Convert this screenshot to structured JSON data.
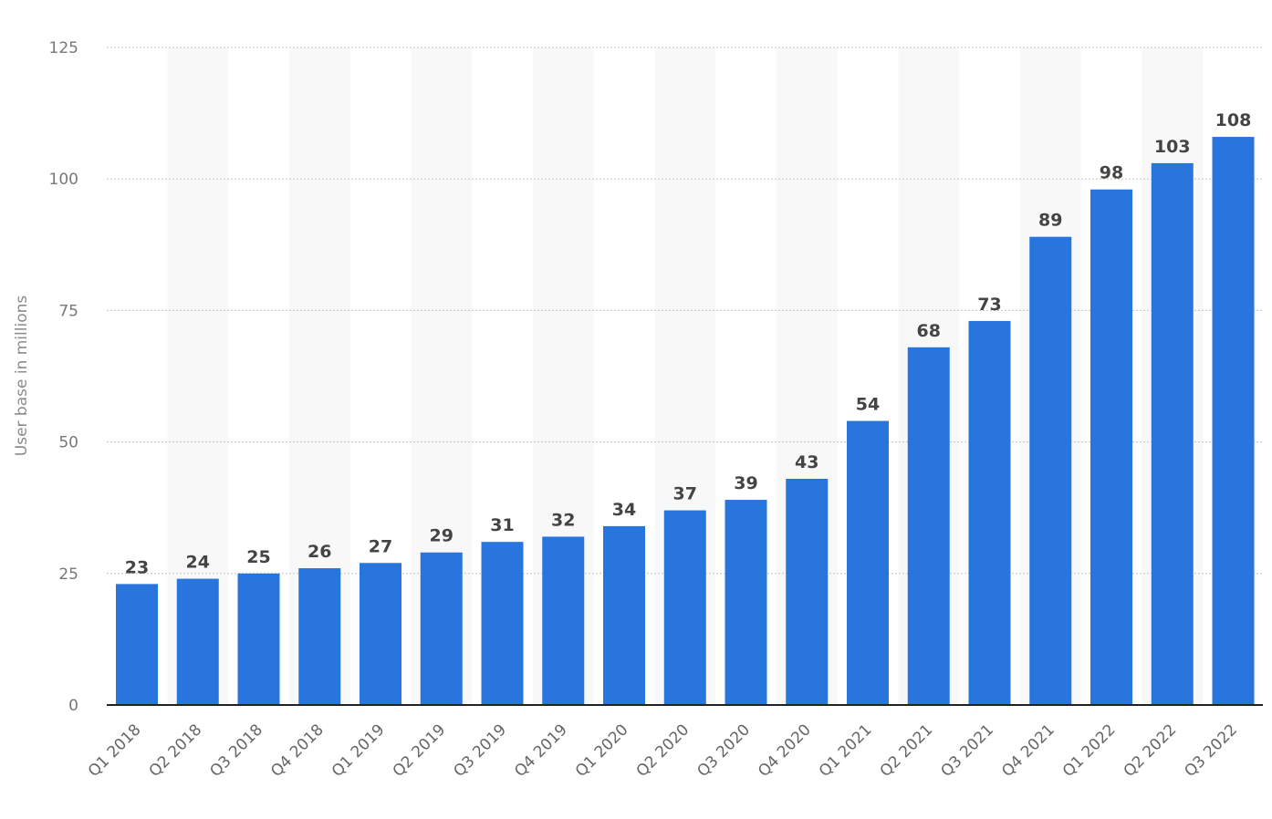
{
  "chart_data": {
    "type": "bar",
    "title": "",
    "xlabel": "",
    "ylabel": "User base in millions",
    "ylim": [
      0,
      125
    ],
    "yticks": [
      0,
      25,
      50,
      75,
      100,
      125
    ],
    "grid": true,
    "legend": "none",
    "categories": [
      "Q1 2018",
      "Q2 2018",
      "Q3 2018",
      "Q4 2018",
      "Q1 2019",
      "Q2 2019",
      "Q3 2019",
      "Q4 2019",
      "Q1 2020",
      "Q2 2020",
      "Q3 2020",
      "Q4 2020",
      "Q1 2021",
      "Q2 2021",
      "Q3 2021",
      "Q4 2021",
      "Q1 2022",
      "Q2 2022",
      "Q3 2022"
    ],
    "values": [
      23,
      24,
      25,
      26,
      27,
      29,
      31,
      32,
      34,
      37,
      39,
      43,
      54,
      68,
      73,
      89,
      98,
      103,
      108
    ],
    "colors": {
      "bar": "#2876dd",
      "band": "#f8f8f8",
      "grid": "#c4c4c4",
      "axis": "#222222"
    }
  }
}
